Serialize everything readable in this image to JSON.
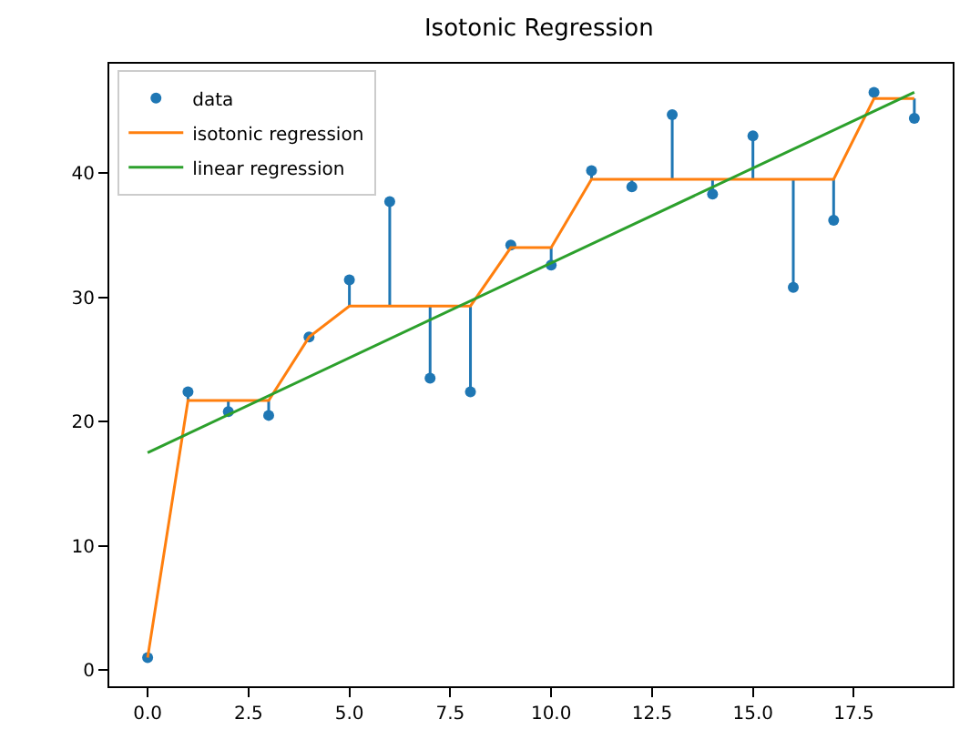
{
  "chart_data": {
    "type": "line",
    "title": "Isotonic Regression",
    "x": [
      0,
      1,
      2,
      3,
      4,
      5,
      6,
      7,
      8,
      9,
      10,
      11,
      12,
      13,
      14,
      15,
      16,
      17,
      18,
      19
    ],
    "series": [
      {
        "name": "data",
        "type": "scatter",
        "color": "#1f77b4",
        "marker": "circle",
        "values": [
          1,
          22.4,
          20.8,
          20.5,
          26.8,
          31.4,
          37.7,
          23.5,
          22.4,
          34.2,
          32.6,
          40.2,
          38.9,
          44.7,
          38.3,
          43,
          30.8,
          36.2,
          46.5,
          44.4
        ],
        "errors": [
          null,
          [
            21.7,
            22.4
          ],
          [
            20.8,
            21.7
          ],
          [
            20.5,
            21.7
          ],
          null,
          [
            29.3,
            31.4
          ],
          [
            29.3,
            37.7
          ],
          [
            23.5,
            29.3
          ],
          [
            22.4,
            29.3
          ],
          [
            34,
            34.2
          ],
          [
            32.6,
            34
          ],
          [
            39.5,
            40.2
          ],
          [
            38.9,
            39.5
          ],
          [
            39.5,
            44.7
          ],
          [
            38.3,
            39.5
          ],
          [
            39.5,
            43
          ],
          [
            30.8,
            39.5
          ],
          [
            36.2,
            39.5
          ],
          [
            46,
            46.5
          ],
          [
            44.4,
            46
          ]
        ]
      },
      {
        "name": "isotonic regression",
        "color": "#ff7f0e",
        "values": [
          1,
          21.7,
          21.7,
          21.7,
          26.8,
          29.3,
          29.3,
          29.3,
          29.3,
          34,
          34,
          39.5,
          39.5,
          39.5,
          39.5,
          39.5,
          39.5,
          39.5,
          46,
          46
        ]
      },
      {
        "name": "linear regression",
        "color": "#2ca02c",
        "x": [
          0,
          19
        ],
        "values": [
          17.5,
          46.5
        ]
      }
    ],
    "xlim": [
      -0.95,
      19.95
    ],
    "xticks": [
      {
        "value": 0,
        "label": "0.0"
      },
      {
        "value": 2.5,
        "label": "2.5"
      },
      {
        "value": 5,
        "label": "5.0"
      },
      {
        "value": 7.5,
        "label": "7.5"
      },
      {
        "value": 10,
        "label": "10.0"
      },
      {
        "value": 12.5,
        "label": "12.5"
      },
      {
        "value": 15,
        "label": "15.0"
      },
      {
        "value": 17.5,
        "label": "17.5"
      }
    ],
    "ylim": [
      -1.3,
      48.8
    ],
    "yticks": [
      0,
      10,
      20,
      30,
      40
    ],
    "legend": "top left"
  }
}
